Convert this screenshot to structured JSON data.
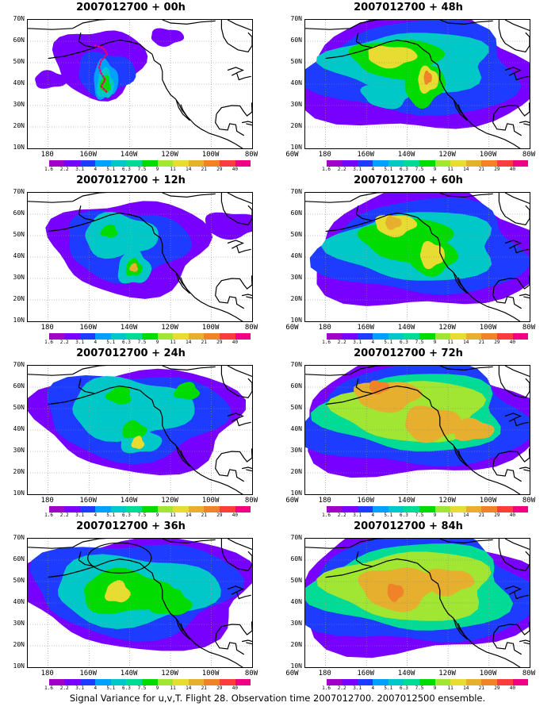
{
  "base_time": "2007012700",
  "panels": [
    {
      "title": "2007012700 + 00h"
    },
    {
      "title": "2007012700 + 48h"
    },
    {
      "title": "2007012700 + 12h"
    },
    {
      "title": "2007012700 + 60h"
    },
    {
      "title": "2007012700 + 24h"
    },
    {
      "title": "2007012700 + 72h"
    },
    {
      "title": "2007012700 + 36h"
    },
    {
      "title": "2007012700 + 84h"
    }
  ],
  "lat_labels": [
    "70N",
    "60N",
    "50N",
    "40N",
    "30N",
    "20N",
    "10N"
  ],
  "lon_labels": [
    "180",
    "160W",
    "140W",
    "120W",
    "100W",
    "80W",
    "60W"
  ],
  "colorbar": {
    "labels": [
      "1.6",
      "2.2",
      "3.1",
      "4",
      "5.1",
      "6.3",
      "7.5",
      "9",
      "11",
      "14",
      "21",
      "29",
      "40"
    ],
    "colors": [
      "#ffffff",
      "#a000c8",
      "#7800ff",
      "#1e3cff",
      "#00a0ff",
      "#00c8c8",
      "#00dc96",
      "#00dc00",
      "#a0e632",
      "#e6dc32",
      "#e6af2d",
      "#f08228",
      "#fa3c3c",
      "#f00082"
    ]
  },
  "caption": "Signal Variance for u,v,T. Flight 28. Observation time 2007012700. 2007012500 ensemble.",
  "icons": {
    "flight_track": "dotted-flight-track-icon",
    "verification_region": "ellipse-region-icon"
  }
}
